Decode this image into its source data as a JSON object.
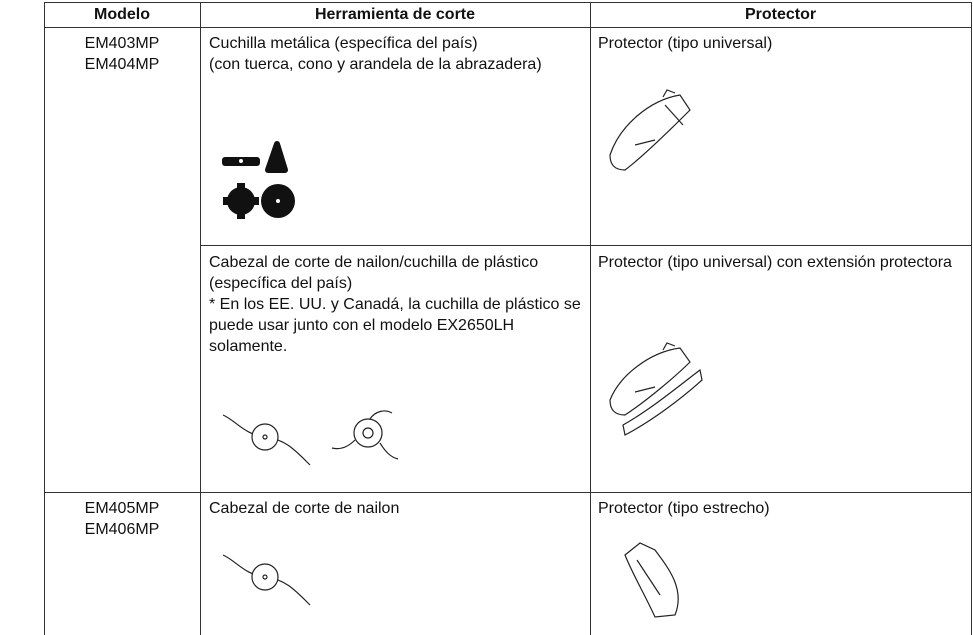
{
  "table": {
    "headers": [
      "Modelo",
      "Herramienta de corte",
      "Protector"
    ],
    "groups": [
      {
        "models": [
          "EM403MP",
          "EM404MP"
        ],
        "rows": [
          {
            "tool": [
              "Cuchilla metálica (específica del país)",
              "(con tuerca, cono y arandela de la abrazadera)"
            ],
            "protector": "Protector (tipo universal)"
          },
          {
            "tool": [
              "Cabezal de corte de nailon/cuchilla de plástico (específica del país)",
              "* En los EE. UU. y Canadá, la cuchilla de plástico se puede usar junto con el modelo EX2650LH solamente."
            ],
            "protector": "Protector (tipo universal) con extensión protectora"
          }
        ]
      },
      {
        "models": [
          "EM405MP",
          "EM406MP"
        ],
        "rows": [
          {
            "tool": [
              "Cabezal de corte de nailon"
            ],
            "protector": "Protector (tipo estrecho)"
          }
        ]
      }
    ]
  }
}
